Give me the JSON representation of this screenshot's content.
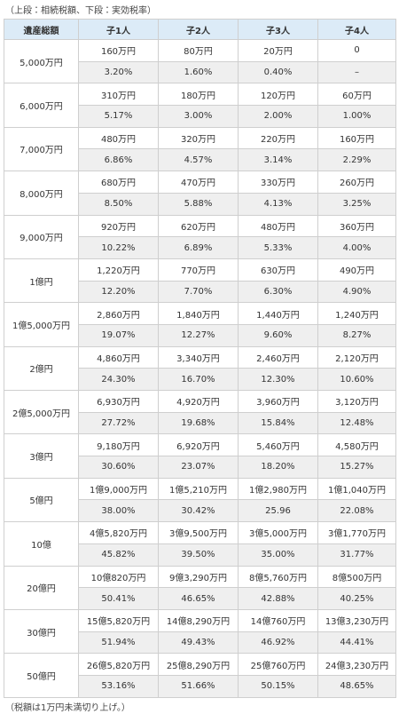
{
  "header": {
    "caption": "（上段：相続税額、下段：実効税率）"
  },
  "table": {
    "columns": [
      "遺産総額",
      "子1人",
      "子2人",
      "子3人",
      "子4人"
    ],
    "rows": [
      {
        "estate": "5,000万円",
        "amounts": [
          "160万円",
          "80万円",
          "20万円",
          "0"
        ],
        "rates": [
          "3.20%",
          "1.60%",
          "0.40%",
          "–"
        ]
      },
      {
        "estate": "6,000万円",
        "amounts": [
          "310万円",
          "180万円",
          "120万円",
          "60万円"
        ],
        "rates": [
          "5.17%",
          "3.00%",
          "2.00%",
          "1.00%"
        ]
      },
      {
        "estate": "7,000万円",
        "amounts": [
          "480万円",
          "320万円",
          "220万円",
          "160万円"
        ],
        "rates": [
          "6.86%",
          "4.57%",
          "3.14%",
          "2.29%"
        ]
      },
      {
        "estate": "8,000万円",
        "amounts": [
          "680万円",
          "470万円",
          "330万円",
          "260万円"
        ],
        "rates": [
          "8.50%",
          "5.88%",
          "4.13%",
          "3.25%"
        ]
      },
      {
        "estate": "9,000万円",
        "amounts": [
          "920万円",
          "620万円",
          "480万円",
          "360万円"
        ],
        "rates": [
          "10.22%",
          "6.89%",
          "5.33%",
          "4.00%"
        ]
      },
      {
        "estate": "1億円",
        "amounts": [
          "1,220万円",
          "770万円",
          "630万円",
          "490万円"
        ],
        "rates": [
          "12.20%",
          "7.70%",
          "6.30%",
          "4.90%"
        ]
      },
      {
        "estate": "1億5,000万円",
        "amounts": [
          "2,860万円",
          "1,840万円",
          "1,440万円",
          "1,240万円"
        ],
        "rates": [
          "19.07%",
          "12.27%",
          "9.60%",
          "8.27%"
        ]
      },
      {
        "estate": "2億円",
        "amounts": [
          "4,860万円",
          "3,340万円",
          "2,460万円",
          "2,120万円"
        ],
        "rates": [
          "24.30%",
          "16.70%",
          "12.30%",
          "10.60%"
        ]
      },
      {
        "estate": "2億5,000万円",
        "amounts": [
          "6,930万円",
          "4,920万円",
          "3,960万円",
          "3,120万円"
        ],
        "rates": [
          "27.72%",
          "19.68%",
          "15.84%",
          "12.48%"
        ]
      },
      {
        "estate": "3億円",
        "amounts": [
          "9,180万円",
          "6,920万円",
          "5,460万円",
          "4,580万円"
        ],
        "rates": [
          "30.60%",
          "23.07%",
          "18.20%",
          "15.27%"
        ]
      },
      {
        "estate": "5億円",
        "amounts": [
          "1億9,000万円",
          "1億5,210万円",
          "1億2,980万円",
          "1億1,040万円"
        ],
        "rates": [
          "38.00%",
          "30.42%",
          "25.96",
          "22.08%"
        ]
      },
      {
        "estate": "10億",
        "amounts": [
          "4億5,820万円",
          "3億9,500万円",
          "3億5,000万円",
          "3億1,770万円"
        ],
        "rates": [
          "45.82%",
          "39.50%",
          "35.00%",
          "31.77%"
        ]
      },
      {
        "estate": "20億円",
        "amounts": [
          "10億820万円",
          "9億3,290万円",
          "8億5,760万円",
          "8億500万円"
        ],
        "rates": [
          "50.41%",
          "46.65%",
          "42.88%",
          "40.25%"
        ]
      },
      {
        "estate": "30億円",
        "amounts": [
          "15億5,820万円",
          "14億8,290万円",
          "14億760万円",
          "13億3,230万円"
        ],
        "rates": [
          "51.94%",
          "49.43%",
          "46.92%",
          "44.41%"
        ]
      },
      {
        "estate": "50億円",
        "amounts": [
          "26億5,820万円",
          "25億8,290万円",
          "25億760万円",
          "24億3,230万円"
        ],
        "rates": [
          "53.16%",
          "51.66%",
          "50.15%",
          "48.65%"
        ]
      }
    ]
  },
  "footer": {
    "note": "（税額は1万円未満切り上げ。）"
  }
}
